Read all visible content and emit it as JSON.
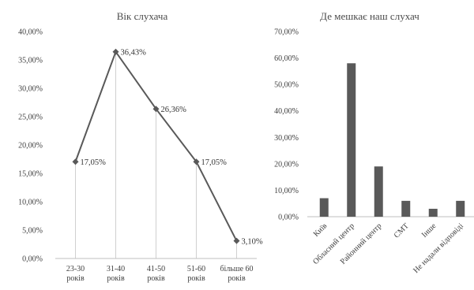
{
  "chart_data": [
    {
      "type": "line",
      "title": "Вік слухача",
      "categories": [
        [
          "23-30",
          "років"
        ],
        [
          "31-40",
          "років"
        ],
        [
          "41-50",
          "років"
        ],
        [
          "51-60",
          "років"
        ],
        [
          "більше 60",
          "років"
        ]
      ],
      "values": [
        17.05,
        36.43,
        26.36,
        17.05,
        3.1
      ],
      "data_labels": [
        "17,05%",
        "36,43%",
        "26,36%",
        "17,05%",
        "3,10%"
      ],
      "yticks": [
        "0,00%",
        "5,00%",
        "10,00%",
        "15,00%",
        "20,00%",
        "25,00%",
        "30,00%",
        "35,00%",
        "40,00%"
      ],
      "ylim": [
        0,
        40
      ],
      "drop_lines": true,
      "line_color": "#595959",
      "marker": "diamond"
    },
    {
      "type": "bar",
      "title": "Де мешкає наш слухач",
      "categories": [
        "Київ",
        "Обласний центр",
        "Районний центр",
        "СМТ",
        "Інше",
        "Не надали відповіді"
      ],
      "values": [
        7,
        58,
        19,
        6,
        3,
        6
      ],
      "yticks": [
        "0,00%",
        "10,00%",
        "20,00%",
        "30,00%",
        "40,00%",
        "50,00%",
        "60,00%",
        "70,00%"
      ],
      "ylim": [
        0,
        70
      ],
      "bar_color": "#595959"
    }
  ]
}
